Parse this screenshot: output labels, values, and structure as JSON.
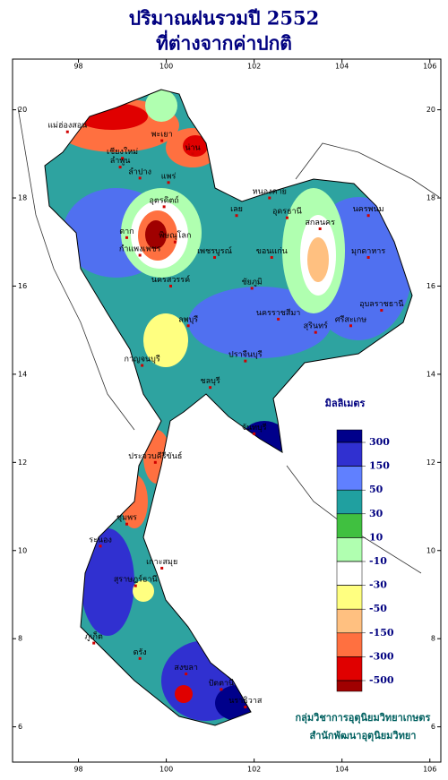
{
  "title": [
    "ปริมาณฝนรวมปี  2552",
    "ที่ต่างจากค่าปกติ"
  ],
  "map": {
    "xlim": [
      96.5,
      106.25
    ],
    "ylim": [
      5.2,
      21.15
    ],
    "xticks": [
      98,
      100,
      102,
      104,
      106
    ],
    "yticks": [
      6,
      8,
      10,
      12,
      14,
      16,
      18,
      20
    ],
    "places": [
      {
        "name": "แม่ฮ่องสอน",
        "lon": 97.75,
        "lat": 19.5
      },
      {
        "name": "พะเยา",
        "lon": 99.9,
        "lat": 19.3
      },
      {
        "name": "น่าน",
        "lon": 100.6,
        "lat": 19.0
      },
      {
        "name": "เชียงใหม่",
        "lon": 99.0,
        "lat": 18.9
      },
      {
        "name": "ลำพูน",
        "lon": 98.95,
        "lat": 18.7
      },
      {
        "name": "ลำปาง",
        "lon": 99.4,
        "lat": 18.45
      },
      {
        "name": "แพร่",
        "lon": 100.05,
        "lat": 18.35
      },
      {
        "name": "อุตรดิตถ์",
        "lon": 99.95,
        "lat": 17.8
      },
      {
        "name": "ตาก",
        "lon": 99.1,
        "lat": 17.1
      },
      {
        "name": "พิษณุโลก",
        "lon": 100.2,
        "lat": 17.0
      },
      {
        "name": "กำแพงเพชร",
        "lon": 99.4,
        "lat": 16.7
      },
      {
        "name": "เพชรบูรณ์",
        "lon": 101.1,
        "lat": 16.65
      },
      {
        "name": "นครสวรรค์",
        "lon": 100.1,
        "lat": 16.0
      },
      {
        "name": "หนองคาย",
        "lon": 102.35,
        "lat": 18.0
      },
      {
        "name": "เลย",
        "lon": 101.6,
        "lat": 17.6
      },
      {
        "name": "อุดรธานี",
        "lon": 102.75,
        "lat": 17.55
      },
      {
        "name": "สกลนคร",
        "lon": 103.5,
        "lat": 17.3
      },
      {
        "name": "นครพนม",
        "lon": 104.6,
        "lat": 17.6
      },
      {
        "name": "มุกดาหาร",
        "lon": 104.6,
        "lat": 16.65
      },
      {
        "name": "ขอนแก่น",
        "lon": 102.4,
        "lat": 16.65
      },
      {
        "name": "ชัยภูมิ",
        "lon": 101.95,
        "lat": 15.95
      },
      {
        "name": "นครราชสีมา",
        "lon": 102.55,
        "lat": 15.25
      },
      {
        "name": "สุรินทร์",
        "lon": 103.4,
        "lat": 14.95
      },
      {
        "name": "ศรีสะเกษ",
        "lon": 104.2,
        "lat": 15.1
      },
      {
        "name": "อุบลราชธานี",
        "lon": 104.9,
        "lat": 15.45
      },
      {
        "name": "ลพบุรี",
        "lon": 100.5,
        "lat": 15.1
      },
      {
        "name": "กาญจนบุรี",
        "lon": 99.45,
        "lat": 14.2
      },
      {
        "name": "ปราจีนบุรี",
        "lon": 101.8,
        "lat": 14.3
      },
      {
        "name": "ชลบุรี",
        "lon": 101.0,
        "lat": 13.7
      },
      {
        "name": "จันทบุรี",
        "lon": 102.0,
        "lat": 12.65
      },
      {
        "name": "ประจวบคีรีขันธ์",
        "lon": 99.75,
        "lat": 12.0
      },
      {
        "name": "ชุมพร",
        "lon": 99.1,
        "lat": 10.6
      },
      {
        "name": "ระนอง",
        "lon": 98.5,
        "lat": 10.1
      },
      {
        "name": "เกาะสมุย",
        "lon": 99.9,
        "lat": 9.6
      },
      {
        "name": "สุราษฎร์ธานี",
        "lon": 99.3,
        "lat": 9.2
      },
      {
        "name": "ภูเก็ต",
        "lon": 98.35,
        "lat": 7.9
      },
      {
        "name": "ตรัง",
        "lon": 99.4,
        "lat": 7.55
      },
      {
        "name": "สงขลา",
        "lon": 100.45,
        "lat": 7.2
      },
      {
        "name": "ปัตตานี",
        "lon": 101.25,
        "lat": 6.85
      },
      {
        "name": "นราธิวาส",
        "lon": 101.8,
        "lat": 6.45
      }
    ]
  },
  "legend": {
    "title": "มิลลิเมตร",
    "levels": [
      300,
      150,
      50,
      30,
      10,
      -10,
      -30,
      -50,
      -150,
      -300,
      -500
    ],
    "colors": [
      "#00008b",
      "#3030d0",
      "#6080ff",
      "#20a0a0",
      "#40c040",
      "#b0ffb0",
      "#ffffff",
      "#ffff80",
      "#ffc080",
      "#ff7040",
      "#e00000",
      "#a00000",
      "#600000"
    ]
  },
  "credits": [
    "กลุ่มวิชาการอุตุนิยมวิทยาเกษตร",
    "สำนักพัฒนาอุตุนิยมวิทยา"
  ]
}
